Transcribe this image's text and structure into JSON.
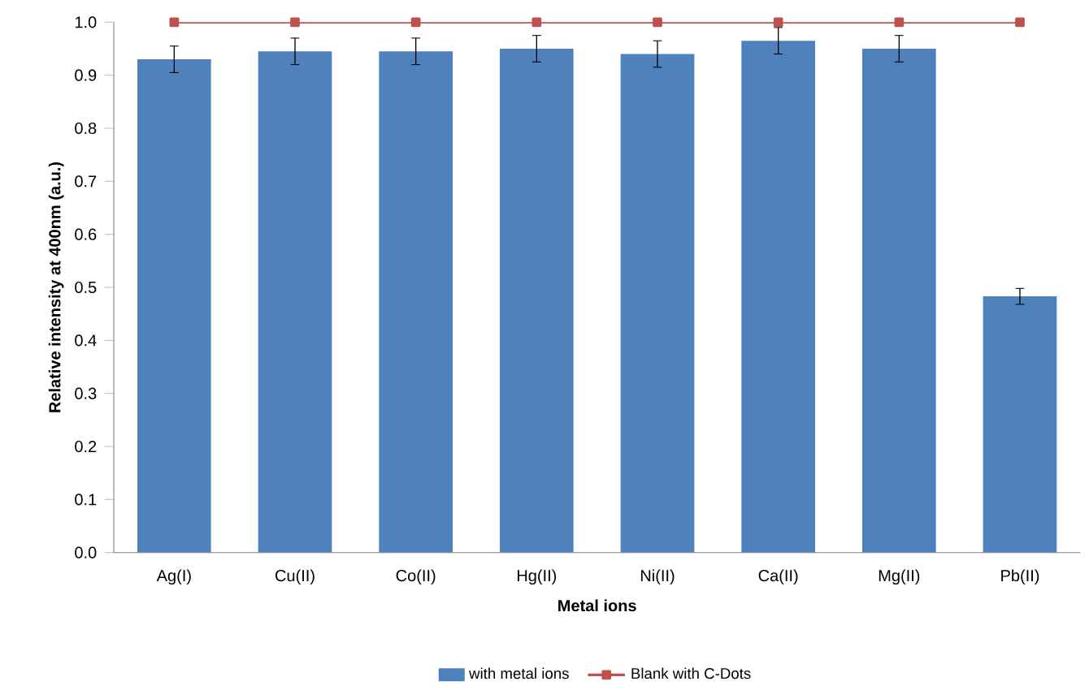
{
  "chart_data": {
    "type": "bar",
    "xlabel": "Metal ions",
    "ylabel": "Relative intensity at 400nm (a.u.)",
    "categories": [
      "Ag(I)",
      "Cu(II)",
      "Co(II)",
      "Hg(II)",
      "Ni(II)",
      "Ca(II)",
      "Mg(II)",
      "Pb(II)"
    ],
    "series": [
      {
        "name": "with metal ions",
        "color": "#4f81bd",
        "values": [
          0.93,
          0.945,
          0.945,
          0.95,
          0.94,
          0.965,
          0.95,
          0.483
        ],
        "errors": [
          0.025,
          0.025,
          0.025,
          0.025,
          0.025,
          0.025,
          0.025,
          0.015
        ]
      },
      {
        "name": "Blank with C-Dots",
        "type": "line",
        "color": "#c0504d",
        "marker": "square",
        "values": [
          1.0,
          1.0,
          1.0,
          1.0,
          1.0,
          1.0,
          1.0,
          1.0
        ]
      }
    ],
    "ylim": [
      0,
      1.0
    ],
    "yticks": [
      {
        "value": 0,
        "label": "0.0"
      },
      {
        "value": 0.1,
        "label": "0.1"
      },
      {
        "value": 0.2,
        "label": "0.2"
      },
      {
        "value": 0.3,
        "label": "0.3"
      },
      {
        "value": 0.4,
        "label": "0.4"
      },
      {
        "value": 0.5,
        "label": "0.5"
      },
      {
        "value": 0.6,
        "label": "0.6"
      },
      {
        "value": 0.7,
        "label": "0.7"
      },
      {
        "value": 0.8,
        "label": "0.8"
      },
      {
        "value": 0.9,
        "label": "0.9"
      },
      {
        "value": 1.0,
        "label": "1.0"
      }
    ],
    "grid": false,
    "legend": "bottom"
  }
}
